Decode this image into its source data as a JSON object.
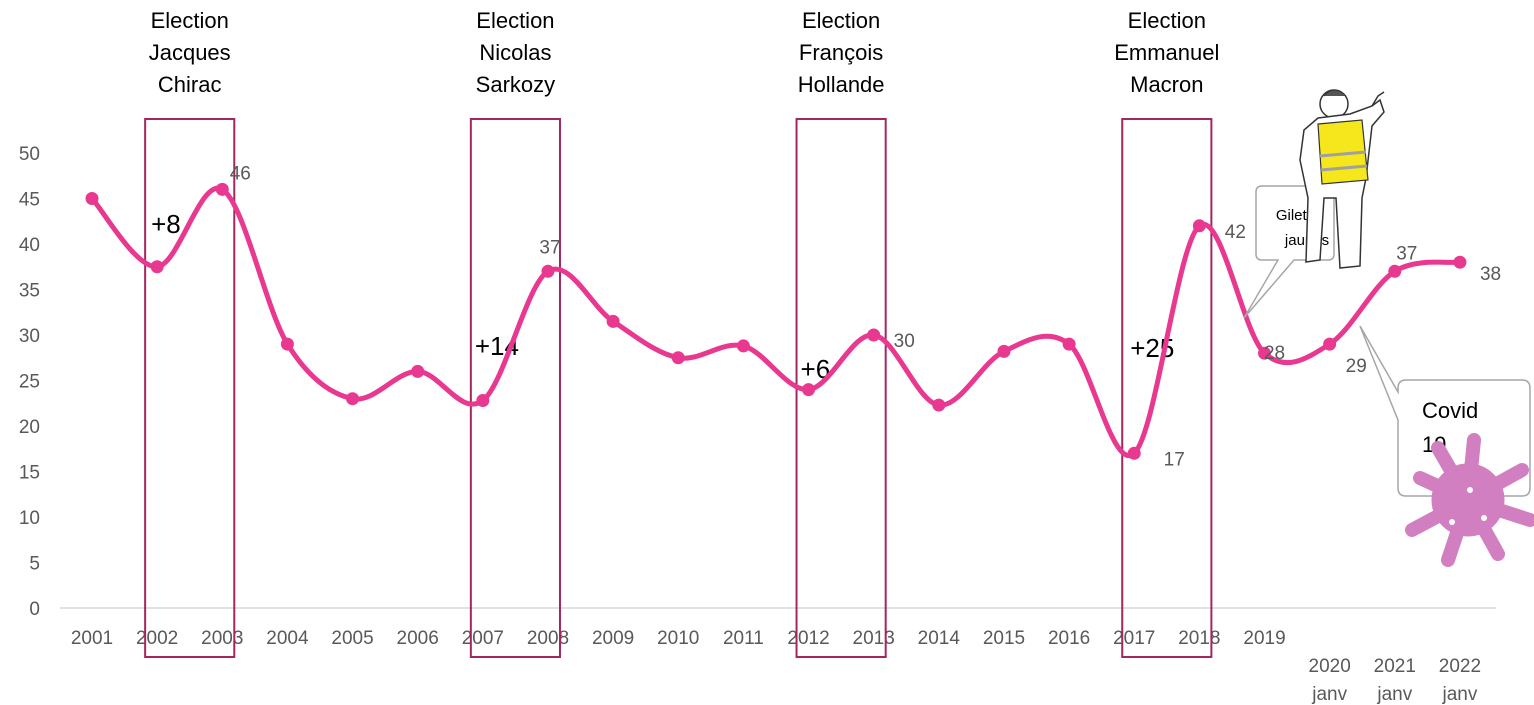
{
  "chart_data": {
    "type": "line",
    "x": [
      "2001",
      "2002",
      "2003",
      "2004",
      "2005",
      "2006",
      "2007",
      "2008",
      "2009",
      "2010",
      "2011",
      "2012",
      "2013",
      "2014",
      "2015",
      "2016",
      "2017",
      "2018",
      "2019",
      "2020 janv",
      "2021 janv",
      "2022 janv"
    ],
    "values": [
      45,
      37.5,
      46,
      29,
      23,
      26,
      22.8,
      37,
      31.5,
      27.5,
      28.8,
      24,
      30,
      22.3,
      28.2,
      29,
      17,
      42,
      28,
      29,
      37,
      38
    ],
    "data_labels": [
      {
        "index": 2,
        "text": "46"
      },
      {
        "index": 7,
        "text": "37"
      },
      {
        "index": 12,
        "text": "30"
      },
      {
        "index": 16,
        "text": "17"
      },
      {
        "index": 17,
        "text": "42"
      },
      {
        "index": 18,
        "text": "28"
      },
      {
        "index": 19,
        "text": "29"
      },
      {
        "index": 20,
        "text": "37"
      },
      {
        "index": 21,
        "text": "38"
      }
    ],
    "y_ticks": [
      "0",
      "5",
      "10",
      "15",
      "20",
      "25",
      "30",
      "35",
      "40",
      "45",
      "50"
    ],
    "ylim": [
      0,
      50
    ],
    "grid": false,
    "line_color": "#E8388F",
    "election_box_color": "#A3275F",
    "elections": [
      {
        "start": 1,
        "end": 2,
        "lines": [
          "Election",
          "Jacques",
          "Chirac"
        ],
        "delta": "+8"
      },
      {
        "start": 6,
        "end": 7,
        "lines": [
          "Election",
          "Nicolas",
          "Sarkozy"
        ],
        "delta": "+14"
      },
      {
        "start": 11,
        "end": 12,
        "lines": [
          "Election",
          "François",
          "Hollande"
        ],
        "delta": "+6"
      },
      {
        "start": 16,
        "end": 17,
        "lines": [
          "Election",
          "Emmanuel",
          "Macron"
        ],
        "delta": "+25"
      }
    ],
    "callouts": [
      {
        "name": "gilets-jaunes",
        "lines": [
          "Gilets",
          "jaunes"
        ]
      },
      {
        "name": "covid",
        "lines": [
          "Covid",
          "19"
        ]
      }
    ]
  },
  "icons": {
    "protester": "gilet-jaune-protester-icon",
    "virus": "virus-icon",
    "virus_color": "#D17FC0",
    "vest_color": "#F5E71C"
  }
}
